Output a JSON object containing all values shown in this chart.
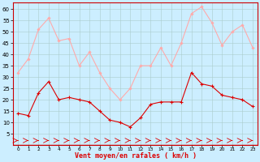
{
  "x": [
    0,
    1,
    2,
    3,
    4,
    5,
    6,
    7,
    8,
    9,
    10,
    11,
    12,
    13,
    14,
    15,
    16,
    17,
    18,
    19,
    20,
    21,
    22,
    23
  ],
  "avg_wind": [
    14,
    13,
    23,
    28,
    20,
    21,
    20,
    19,
    15,
    11,
    10,
    8,
    12,
    18,
    19,
    19,
    19,
    32,
    27,
    26,
    22,
    21,
    20,
    17
  ],
  "gusts": [
    32,
    38,
    51,
    56,
    46,
    47,
    35,
    41,
    32,
    25,
    20,
    25,
    35,
    35,
    43,
    35,
    45,
    58,
    61,
    54,
    44,
    50,
    53,
    43
  ],
  "avg_color": "#dd0000",
  "gust_color": "#ffaaaa",
  "dir_color": "#dd0000",
  "bg_color": "#cceeff",
  "grid_color": "#aacccc",
  "xlabel": "Vent moyen/en rafales ( km/h )",
  "xlabel_color": "#dd0000",
  "yticks": [
    5,
    10,
    15,
    20,
    25,
    30,
    35,
    40,
    45,
    50,
    55,
    60
  ],
  "xticks": [
    0,
    1,
    2,
    3,
    4,
    5,
    6,
    7,
    8,
    9,
    10,
    11,
    12,
    13,
    14,
    15,
    16,
    17,
    18,
    19,
    20,
    21,
    22,
    23
  ]
}
